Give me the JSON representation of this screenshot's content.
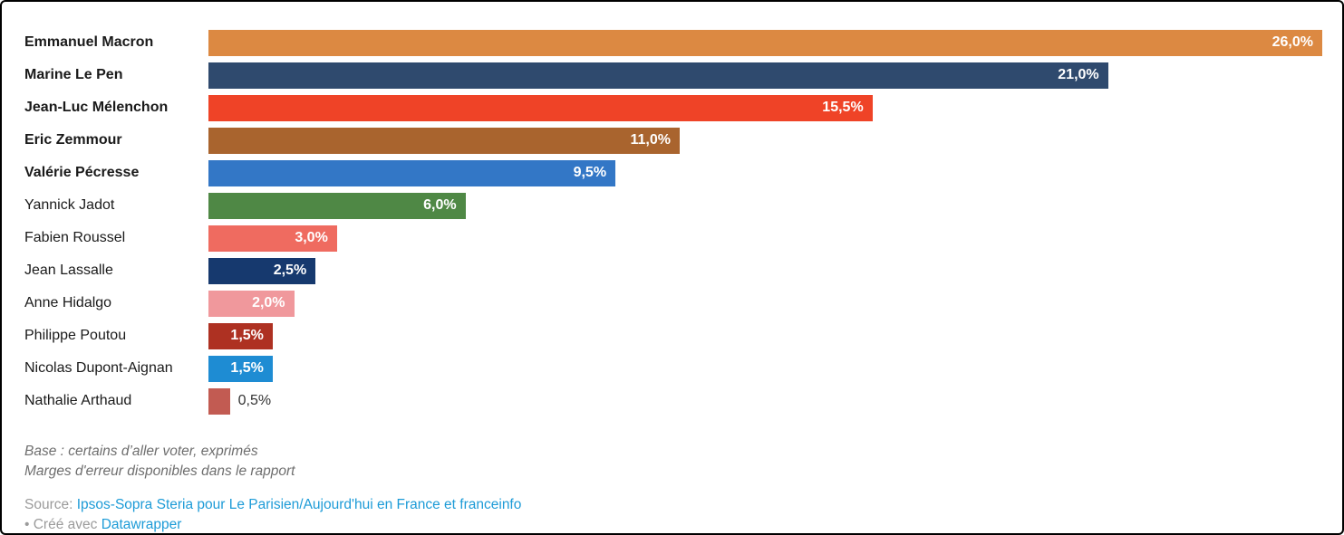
{
  "chart_data": {
    "type": "bar",
    "orientation": "horizontal",
    "title": "",
    "xlabel": "",
    "ylabel": "",
    "xlim": [
      0,
      26
    ],
    "grid": false,
    "legend": false,
    "value_suffix": "%",
    "decimal_separator": ",",
    "series": [
      {
        "label": "Emmanuel Macron",
        "value": 26.0,
        "display": "26,0%",
        "color": "#DC8942",
        "bold": true
      },
      {
        "label": "Marine Le Pen",
        "value": 21.0,
        "display": "21,0%",
        "color": "#2F4A6E",
        "bold": true
      },
      {
        "label": "Jean-Luc Mélenchon",
        "value": 15.5,
        "display": "15,5%",
        "color": "#EF4327",
        "bold": true
      },
      {
        "label": "Eric Zemmour",
        "value": 11.0,
        "display": "11,0%",
        "color": "#A9642E",
        "bold": true
      },
      {
        "label": "Valérie Pécresse",
        "value": 9.5,
        "display": "9,5%",
        "color": "#3377C6",
        "bold": true
      },
      {
        "label": "Yannick Jadot",
        "value": 6.0,
        "display": "6,0%",
        "color": "#4F8845",
        "bold": false
      },
      {
        "label": "Fabien Roussel",
        "value": 3.0,
        "display": "3,0%",
        "color": "#EF6B60",
        "bold": false
      },
      {
        "label": "Jean Lassalle",
        "value": 2.5,
        "display": "2,5%",
        "color": "#16396E",
        "bold": false
      },
      {
        "label": "Anne Hidalgo",
        "value": 2.0,
        "display": "2,0%",
        "color": "#F0989C",
        "bold": false
      },
      {
        "label": "Philippe Poutou",
        "value": 1.5,
        "display": "1,5%",
        "color": "#AE3122",
        "bold": false
      },
      {
        "label": "Nicolas Dupont-Aignan",
        "value": 1.5,
        "display": "1,5%",
        "color": "#1E8CD3",
        "bold": false
      },
      {
        "label": "Nathalie Arthaud",
        "value": 0.5,
        "display": "0,5%",
        "color": "#C25B52",
        "bold": false
      }
    ]
  },
  "footer": {
    "notes": [
      "Base : certains d’aller voter, exprimés",
      "Marges d'erreur disponibles dans le rapport"
    ],
    "source_label": "Source: ",
    "source_link": "Ipsos-Sopra Steria pour Le Parisien/Aujourd'hui en France et franceinfo",
    "attribution_prefix": "• Créé avec ",
    "attribution_link": "Datawrapper",
    "link_color": "#1D9BD7",
    "value_label_inside_color": "#ffffff",
    "value_label_outside_color": "#333333"
  }
}
